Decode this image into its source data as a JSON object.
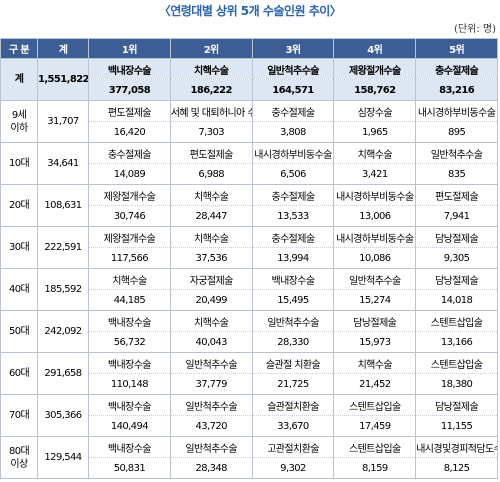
{
  "title": "〈연령대별 상위 5개 수술인원 추이〉",
  "unit": "(단위: 명)",
  "header": [
    "구 분",
    "계",
    "1위",
    "2위",
    "3위",
    "4위",
    "5위"
  ],
  "rows": [
    {
      "label": "계",
      "sum": "1,551,822",
      "items": [
        {
          "name": "백내장수술",
          "count": "377,058"
        },
        {
          "name": "치핵수술",
          "count": "186,222"
        },
        {
          "name": "일반척추수술",
          "count": "164,571"
        },
        {
          "name": "제왕절개수술",
          "count": "158,762"
        },
        {
          "name": "충수절제술",
          "count": "83,216"
        }
      ]
    },
    {
      "label": "9세\n이하",
      "sum": "31,707",
      "items": [
        {
          "name": "편도절제술",
          "count": "16,420"
        },
        {
          "name": "서혜 및 대퇴허니아 수술",
          "count": "7,303"
        },
        {
          "name": "충수절제술",
          "count": "3,808"
        },
        {
          "name": "심장수술",
          "count": "1,965"
        },
        {
          "name": "내시경하부비동수술",
          "count": "895"
        }
      ]
    },
    {
      "label": "10대",
      "sum": "34,641",
      "items": [
        {
          "name": "충수절제술",
          "count": "14,089"
        },
        {
          "name": "편도절제술",
          "count": "6,988"
        },
        {
          "name": "내시경하부비동수술",
          "count": "6,506"
        },
        {
          "name": "치핵수술",
          "count": "3,421"
        },
        {
          "name": "일반척추수술",
          "count": "835"
        }
      ]
    },
    {
      "label": "20대",
      "sum": "108,631",
      "items": [
        {
          "name": "제왕절개수술",
          "count": "30,746"
        },
        {
          "name": "치핵수술",
          "count": "28,447"
        },
        {
          "name": "충수절제술",
          "count": "13,533"
        },
        {
          "name": "내시경하부비동수술",
          "count": "13,006"
        },
        {
          "name": "편도절제술",
          "count": "7,941"
        }
      ]
    },
    {
      "label": "30대",
      "sum": "222,591",
      "items": [
        {
          "name": "제왕절개수술",
          "count": "117,566"
        },
        {
          "name": "치핵수술",
          "count": "37,536"
        },
        {
          "name": "충수절제술",
          "count": "13,994"
        },
        {
          "name": "내시경하부비동수술",
          "count": "10,086"
        },
        {
          "name": "담낭절제술",
          "count": "9,305"
        }
      ]
    },
    {
      "label": "40대",
      "sum": "185,592",
      "items": [
        {
          "name": "치핵수술",
          "count": "44,185"
        },
        {
          "name": "자궁절제술",
          "count": "20,499"
        },
        {
          "name": "백내장수술",
          "count": "15,495"
        },
        {
          "name": "일반척추수술",
          "count": "15,274"
        },
        {
          "name": "담낭절제술",
          "count": "14,018"
        }
      ]
    },
    {
      "label": "50대",
      "sum": "242,092",
      "items": [
        {
          "name": "백내장수술",
          "count": "56,732"
        },
        {
          "name": "치핵수술",
          "count": "40,043"
        },
        {
          "name": "일반척추수술",
          "count": "28,330"
        },
        {
          "name": "담낭절제술",
          "count": "15,973"
        },
        {
          "name": "스텐트삽입술",
          "count": "13,166"
        }
      ]
    },
    {
      "label": "60대",
      "sum": "291,658",
      "items": [
        {
          "name": "백내장수술",
          "count": "110,148"
        },
        {
          "name": "일반척추수술",
          "count": "37,779"
        },
        {
          "name": "슬관절 치환술",
          "count": "21,725"
        },
        {
          "name": "치핵수술",
          "count": "21,452"
        },
        {
          "name": "스텐트삽입술",
          "count": "18,380"
        }
      ]
    },
    {
      "label": "70대",
      "sum": "305,366",
      "items": [
        {
          "name": "백내장수술",
          "count": "140,494"
        },
        {
          "name": "일반척추수술",
          "count": "43,720"
        },
        {
          "name": "슬관절치환술",
          "count": "33,670"
        },
        {
          "name": "스텐트삽입술",
          "count": "17,459"
        },
        {
          "name": "담낭절제술",
          "count": "11,155"
        }
      ]
    },
    {
      "label": "80대\n이상",
      "sum": "129,544",
      "items": [
        {
          "name": "백내장수술",
          "count": "50,831"
        },
        {
          "name": "일반척추수술",
          "count": "28,348"
        },
        {
          "name": "고관절치환술",
          "count": "9,302"
        },
        {
          "name": "스텐트삽입술",
          "count": "8,159"
        },
        {
          "name": "내시경및경피적담도수술",
          "count": "8,125"
        }
      ]
    }
  ]
}
